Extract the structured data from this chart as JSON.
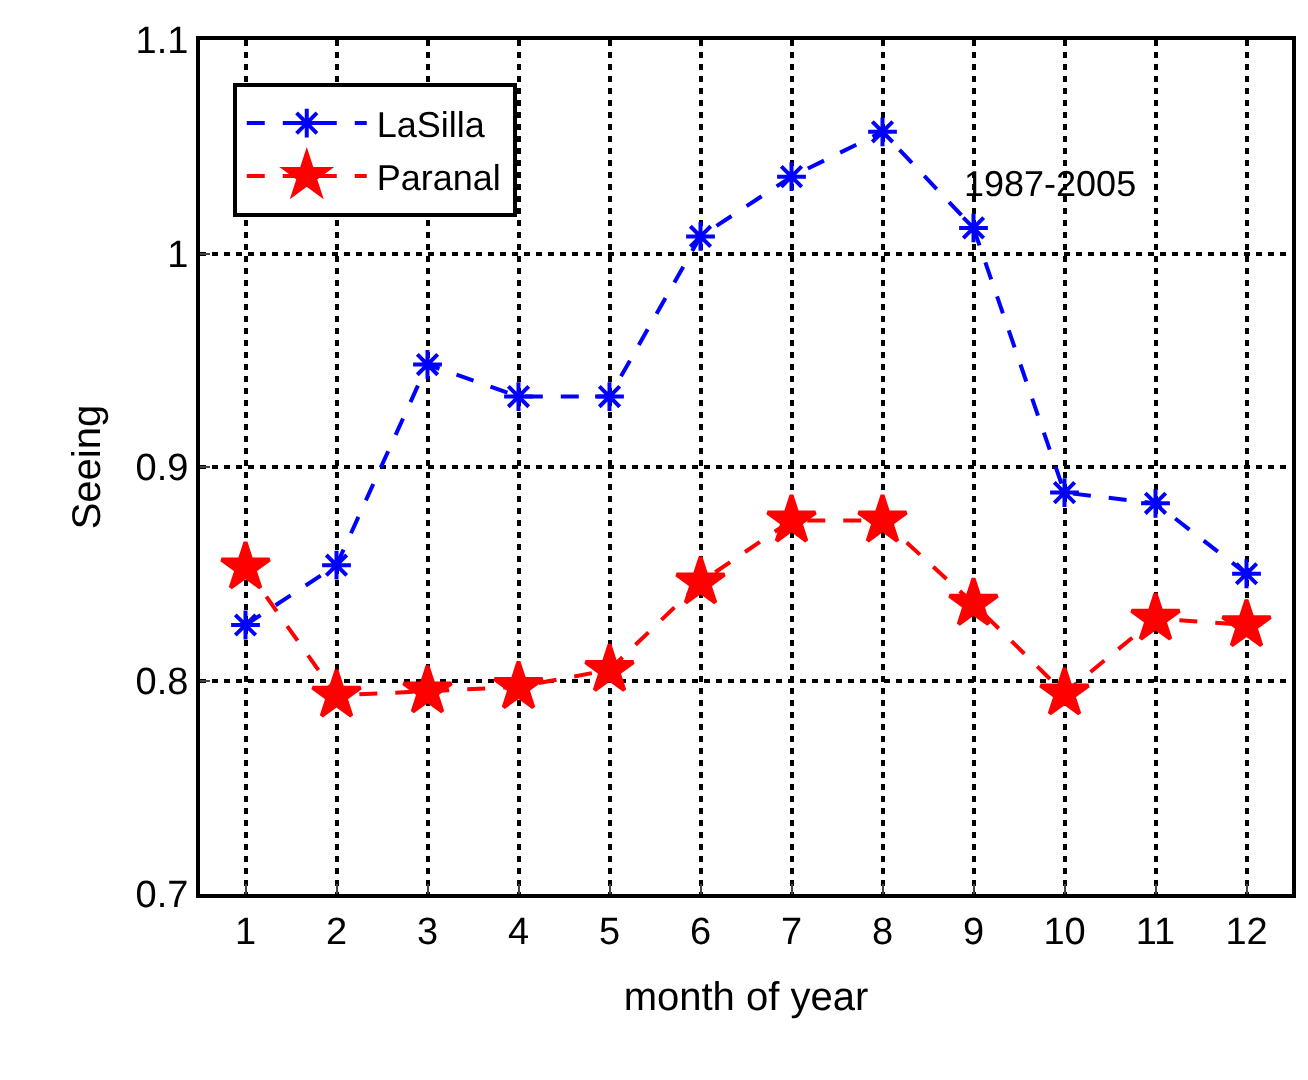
{
  "chart_data": {
    "type": "line",
    "xlabel": "month of year",
    "ylabel": "Seeing",
    "x": [
      1,
      2,
      3,
      4,
      5,
      6,
      7,
      8,
      9,
      10,
      11,
      12
    ],
    "series": [
      {
        "name": "LaSilla",
        "color": "#0000ff",
        "marker": "cross",
        "values": [
          0.826,
          0.854,
          0.948,
          0.933,
          0.933,
          1.008,
          1.036,
          1.057,
          1.012,
          0.888,
          0.883,
          0.85
        ]
      },
      {
        "name": "Paranal",
        "color": "#ff0000",
        "marker": "star",
        "values": [
          0.853,
          0.793,
          0.795,
          0.797,
          0.805,
          0.846,
          0.875,
          0.875,
          0.836,
          0.794,
          0.829,
          0.826
        ]
      }
    ],
    "annotations": [
      "1987-2005"
    ],
    "xlim": [
      0.5,
      12.5
    ],
    "xticks": [
      1,
      2,
      3,
      4,
      5,
      6,
      7,
      8,
      9,
      10,
      11,
      12
    ],
    "ylim": [
      0.7,
      1.1
    ],
    "yticks": [
      0.7,
      0.8,
      0.9,
      1,
      1.1
    ],
    "grid": true,
    "legend": "top left",
    "line_style": "dashed"
  }
}
